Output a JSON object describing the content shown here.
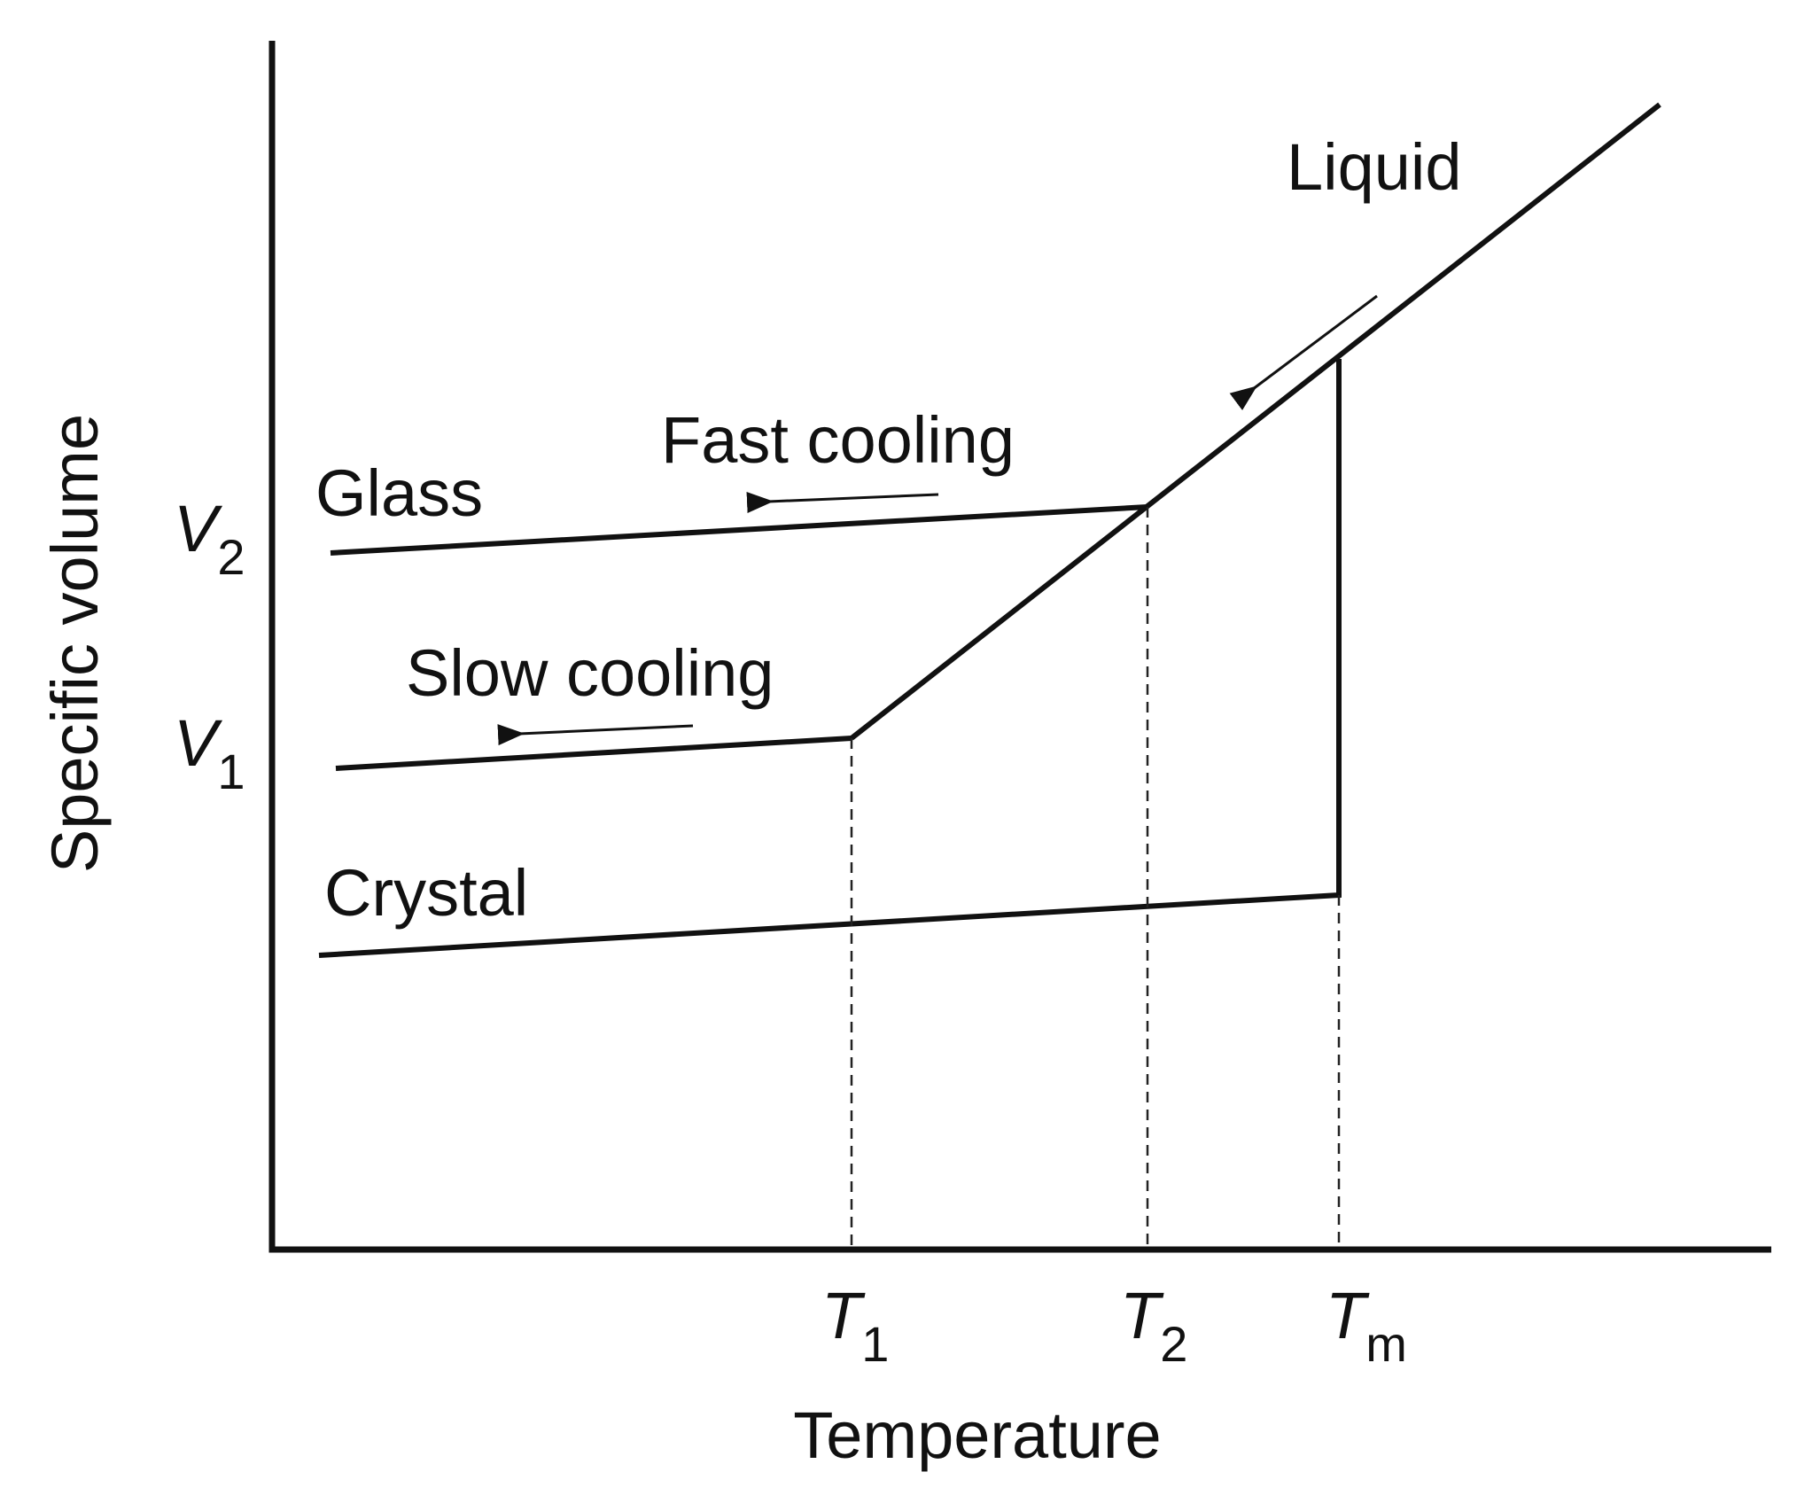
{
  "axes": {
    "x_label": "Temperature",
    "y_label": "Specific volume"
  },
  "curves": {
    "liquid": "Liquid",
    "glass": "Glass",
    "crystal": "Crystal",
    "fast": "Fast cooling",
    "slow": "Slow cooling"
  },
  "x_marks": [
    {
      "main": "T",
      "sub": "1"
    },
    {
      "main": "T",
      "sub": "2"
    },
    {
      "main": "T",
      "sub": "m"
    }
  ],
  "y_marks": [
    {
      "main": "V",
      "sub": "2"
    },
    {
      "main": "V",
      "sub": "1"
    }
  ]
}
